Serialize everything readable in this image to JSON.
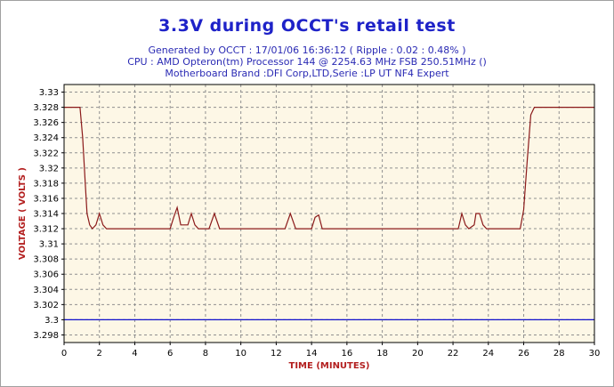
{
  "chart_data": {
    "type": "line",
    "title": "3.3V during OCCT's retail test",
    "subtitle_lines": [
      "Generated by OCCT : 17/01/06 16:36:12 ( Ripple : 0.02 : 0.48% )",
      "CPU : AMD Opteron(tm) Processor 144     @ 2254.63 MHz FSB 250.51MHz ()",
      "Motherboard Brand :DFI Corp,LTD,Serie :LP UT NF4 Expert"
    ],
    "xlabel": "TIME (MINUTES)",
    "ylabel": "VOLTAGE ( VOLTS )",
    "xlim": [
      0,
      30
    ],
    "ylim": [
      3.297,
      3.331
    ],
    "x_ticks": [
      0,
      2,
      4,
      6,
      8,
      10,
      12,
      14,
      16,
      18,
      20,
      22,
      24,
      26,
      28,
      30
    ],
    "y_ticks": [
      "3.298",
      "3.3",
      "3.302",
      "3.304",
      "3.306",
      "3.308",
      "3.31",
      "3.312",
      "3.314",
      "3.316",
      "3.318",
      "3.32",
      "3.322",
      "3.324",
      "3.326",
      "3.328",
      "3.33"
    ],
    "grid": true,
    "series": [
      {
        "color": "#8b1a1a",
        "x": [
          0,
          0.9,
          1.05,
          1.2,
          1.3,
          1.45,
          1.6,
          1.8,
          2.0,
          2.2,
          2.4,
          6.0,
          6.2,
          6.4,
          6.6,
          7.0,
          7.2,
          7.4,
          7.6,
          8.2,
          8.5,
          8.8,
          12.5,
          12.8,
          13.1,
          14.0,
          14.2,
          14.4,
          14.6,
          22.3,
          22.5,
          22.7,
          22.9,
          23.2,
          23.3,
          23.5,
          23.7,
          23.9,
          25.8,
          26.0,
          26.2,
          26.4,
          26.6,
          30
        ],
        "y": [
          3.328,
          3.328,
          3.324,
          3.318,
          3.314,
          3.3125,
          3.312,
          3.3125,
          3.314,
          3.3125,
          3.312,
          3.312,
          3.3135,
          3.3148,
          3.3125,
          3.3125,
          3.314,
          3.3125,
          3.312,
          3.312,
          3.314,
          3.312,
          3.312,
          3.314,
          3.312,
          3.312,
          3.3135,
          3.3138,
          3.312,
          3.312,
          3.314,
          3.3125,
          3.312,
          3.3125,
          3.314,
          3.314,
          3.3125,
          3.312,
          3.312,
          3.3145,
          3.321,
          3.327,
          3.328,
          3.328
        ]
      },
      {
        "color": "#1010cc",
        "x": [
          0,
          30
        ],
        "y": [
          3.3,
          3.3
        ]
      }
    ]
  },
  "colors": {
    "plot_background": "#fdf7e6",
    "grid": "#909090",
    "title": "#1e22c8",
    "axis_label": "#b31f1f"
  }
}
